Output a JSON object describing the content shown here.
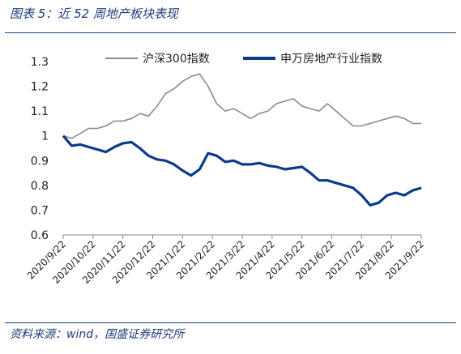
{
  "caption": "图表 5：近 52 周地产板块表现",
  "source": "资料来源：wind，国盛证券研究所",
  "chart_data": {
    "type": "line",
    "ylim": [
      0.6,
      1.3
    ],
    "yticks": [
      "1.3",
      "1.2",
      "1.1",
      "1",
      "0.9",
      "0.8",
      "0.7",
      "0.6"
    ],
    "ytick_values": [
      1.3,
      1.2,
      1.1,
      1.0,
      0.9,
      0.8,
      0.7,
      0.6
    ],
    "x_labels": [
      "2020/9/22",
      "2020/10/22",
      "2020/11/22",
      "2020/12/22",
      "2021/1/22",
      "2021/2/22",
      "2021/3/22",
      "2021/4/22",
      "2021/5/22",
      "2021/6/22",
      "2021/7/22",
      "2021/8/22",
      "2021/9/22"
    ],
    "legend_position": "top",
    "series": [
      {
        "name": "沪深300指数",
        "color": "#8c8c8c",
        "values": [
          1.0,
          0.99,
          1.01,
          1.03,
          1.03,
          1.04,
          1.06,
          1.06,
          1.07,
          1.09,
          1.08,
          1.12,
          1.17,
          1.19,
          1.22,
          1.24,
          1.25,
          1.2,
          1.13,
          1.1,
          1.11,
          1.09,
          1.07,
          1.09,
          1.1,
          1.13,
          1.14,
          1.15,
          1.12,
          1.11,
          1.1,
          1.13,
          1.1,
          1.07,
          1.04,
          1.04,
          1.05,
          1.06,
          1.07,
          1.08,
          1.07,
          1.05,
          1.05
        ]
      },
      {
        "name": "申万房地产行业指数",
        "color": "#0b3a8a",
        "values": [
          1.0,
          0.96,
          0.965,
          0.955,
          0.945,
          0.935,
          0.955,
          0.97,
          0.975,
          0.95,
          0.92,
          0.905,
          0.9,
          0.885,
          0.86,
          0.84,
          0.865,
          0.93,
          0.92,
          0.895,
          0.9,
          0.885,
          0.885,
          0.89,
          0.88,
          0.875,
          0.865,
          0.87,
          0.875,
          0.85,
          0.82,
          0.82,
          0.81,
          0.8,
          0.79,
          0.76,
          0.72,
          0.73,
          0.76,
          0.77,
          0.76,
          0.78,
          0.79
        ]
      }
    ]
  }
}
